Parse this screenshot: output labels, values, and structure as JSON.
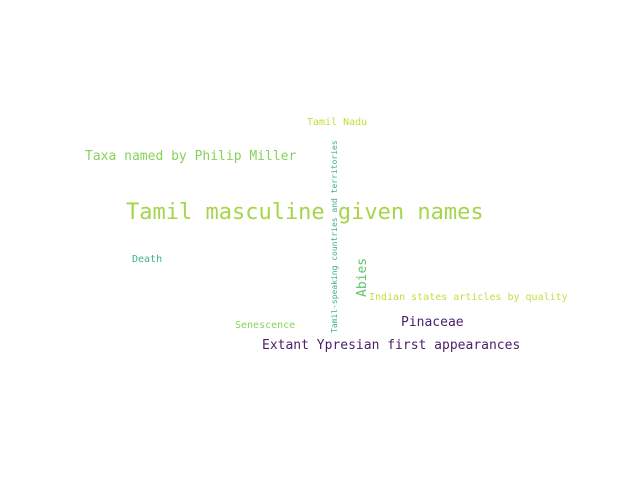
{
  "words": {
    "w1": {
      "text": "Tamil masculine given names",
      "color": "#a5d64a"
    },
    "w2": {
      "text": "Taxa named by Philip Miller",
      "color": "#86d25a"
    },
    "w3": {
      "text": "Tamil Nadu",
      "color": "#c5dc3c"
    },
    "w4": {
      "text": "Tamil-speaking countries and territories",
      "color": "#3fae8a"
    },
    "w5": {
      "text": "Abies",
      "color": "#5fc46a"
    },
    "w6": {
      "text": "Death",
      "color": "#40b095"
    },
    "w7": {
      "text": "Indian states articles by quality",
      "color": "#c8dc40"
    },
    "w8": {
      "text": "Pinaceae",
      "color": "#4a1f68"
    },
    "w9": {
      "text": "Senescence",
      "color": "#8ad45c"
    },
    "w10": {
      "text": "Extant Ypresian first appearances",
      "color": "#4a1f68"
    }
  }
}
